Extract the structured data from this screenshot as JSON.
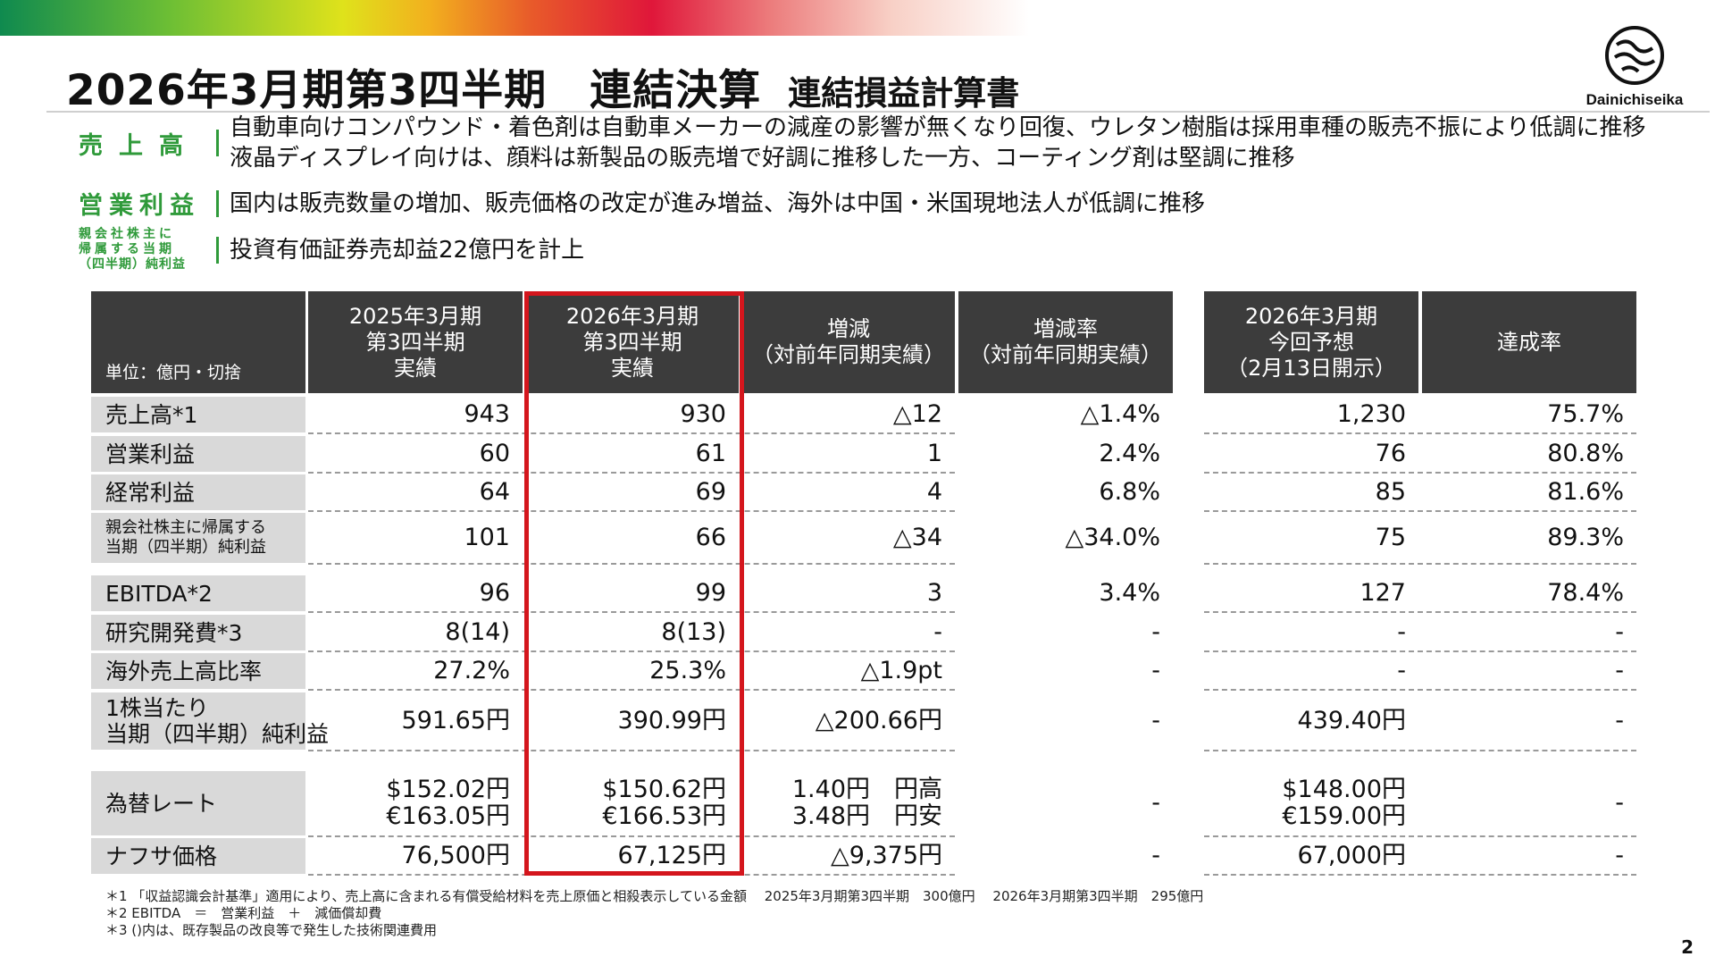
{
  "header": {
    "title": "2026年3月期第3四半期　連結決算",
    "subtitle": "連結損益計算書",
    "logo_text": "Dainichiseika",
    "brand_colors": [
      "#0f8a4f",
      "#6ebf34",
      "#dfe21b",
      "#e0173a"
    ]
  },
  "summary": {
    "sales_label": "売上高",
    "sales_text_1": "自動車向けコンパウンド・着色剤は自動車メーカーの減産の影響が無くなり回復、ウレタン樹脂は採用車種の販売不振により低調に推移",
    "sales_text_2": "液晶ディスプレイ向けは、顔料は新製品の販売増で好調に推移した一方、コーティング剤は堅調に推移",
    "op_label": "営業利益",
    "op_text": "国内は販売数量の増加、販売価格の改定が進み増益、海外は中国・米国現地法人が低調に推移",
    "ni_label_1": "親会社株主に",
    "ni_label_2": "帰属する当期",
    "ni_label_3": "（四半期）純利益",
    "ni_text": "投資有価証券売却益22億円を計上"
  },
  "table": {
    "unit_label": "単位：億円・切捨",
    "headers": [
      "2025年3月期\n第3四半期\n実績",
      "2026年3月期\n第3四半期\n実績",
      "増減\n（対前年同期実績）",
      "増減率\n（対前年同期実績）",
      "2026年3月期\n今回予想\n（2月13日開示）",
      "達成率"
    ],
    "rows": [
      {
        "label": "売上高*1",
        "cells": [
          "943",
          "930",
          "△12",
          "△1.4%",
          "1,230",
          "75.7%"
        ]
      },
      {
        "label": "営業利益",
        "cells": [
          "60",
          "61",
          "1",
          "2.4%",
          "76",
          "80.8%"
        ]
      },
      {
        "label": "経常利益",
        "cells": [
          "64",
          "69",
          "4",
          "6.8%",
          "85",
          "81.6%"
        ]
      },
      {
        "label": "親会社株主に帰属する\n当期（四半期）純利益",
        "cells": [
          "101",
          "66",
          "△34",
          "△34.0%",
          "75",
          "89.3%"
        ]
      },
      {
        "label": "EBITDA*2",
        "cells": [
          "96",
          "99",
          "3",
          "3.4%",
          "127",
          "78.4%"
        ]
      },
      {
        "label": "研究開発費*3",
        "cells": [
          "8(14)",
          "8(13)",
          "-",
          "-",
          "-",
          "-"
        ]
      },
      {
        "label": "海外売上高比率",
        "cells": [
          "27.2%",
          "25.3%",
          "△1.9pt",
          "-",
          "-",
          "-"
        ]
      },
      {
        "label": "1株当たり\n当期（四半期）純利益",
        "cells": [
          "591.65円",
          "390.99円",
          "△200.66円",
          "-",
          "439.40円",
          "-"
        ]
      },
      {
        "label": "為替レート",
        "cells": [
          "$152.02円\n€163.05円",
          "$150.62円\n€166.53円",
          "1.40円　円高\n3.48円　円安",
          "-",
          "$148.00円\n€159.00円",
          "-"
        ]
      },
      {
        "label": "ナフサ価格",
        "cells": [
          "76,500円",
          "67,125円",
          "△9,375円",
          "-",
          "67,000円",
          "-"
        ]
      }
    ]
  },
  "footnotes": [
    "＊1 「収益認識会計基準」適用により、売上高に含まれる有償受給材料を売上原価と相殺表示している金額　 2025年3月期第3四半期　300億円　 2026年3月期第3四半期　295億円",
    "＊2  EBITDA　＝　営業利益　＋　減価償却費",
    "＊3  ()内は、既存製品の改良等で発生した技術関連費用"
  ],
  "page_number": "2"
}
